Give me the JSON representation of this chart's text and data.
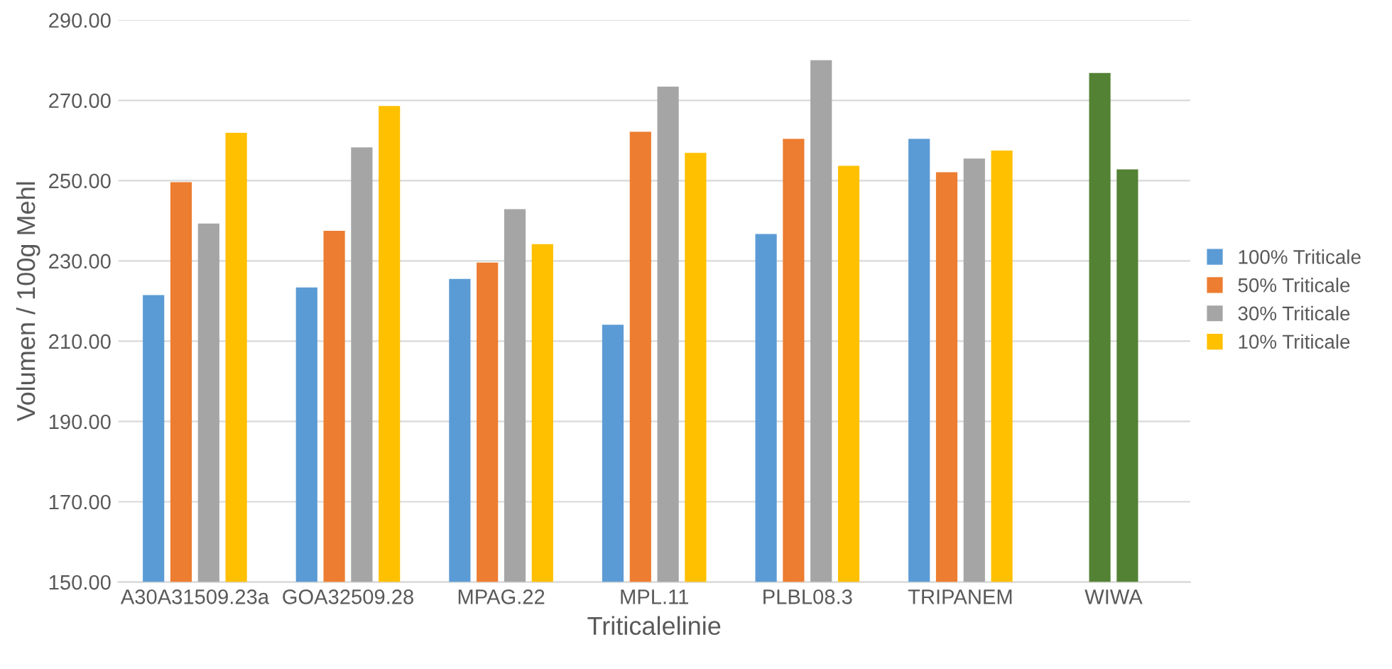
{
  "chart_data": {
    "type": "bar",
    "xlabel": "Triticalelinie",
    "ylabel": "Volumen / 100g Mehl",
    "categories": [
      "A30A31509.23a",
      "GOA32509.28",
      "MPAG.22",
      "MPL.11",
      "PLBL08.3",
      "TRIPANEM",
      "WIWA"
    ],
    "series": [
      {
        "name": "100% Triticale",
        "color": "#5b9bd5",
        "values": [
          221.5,
          223.4,
          225.5,
          214.1,
          236.7,
          260.4,
          null
        ]
      },
      {
        "name": "50% Triticale",
        "color": "#ed7d31",
        "colors": [
          "#ed7d31",
          "#ed7d31",
          "#ed7d31",
          "#ed7d31",
          "#ed7d31",
          "#ed7d31",
          "#548235"
        ],
        "values": [
          249.6,
          237.5,
          229.6,
          262.2,
          260.4,
          252.1,
          276.8
        ]
      },
      {
        "name": "30% Triticale",
        "color": "#a5a5a5",
        "colors": [
          "#a5a5a5",
          "#a5a5a5",
          "#a5a5a5",
          "#a5a5a5",
          "#a5a5a5",
          "#a5a5a5",
          "#548235"
        ],
        "values": [
          239.3,
          258.3,
          242.9,
          273.4,
          280.0,
          255.5,
          252.8
        ]
      },
      {
        "name": "10% Triticale",
        "color": "#ffc000",
        "values": [
          261.9,
          268.6,
          234.2,
          256.9,
          253.7,
          257.5,
          null
        ]
      }
    ],
    "ylim": [
      150,
      290
    ],
    "yticks": [
      {
        "value": 150,
        "label": "150.00"
      },
      {
        "value": 170,
        "label": "170.00"
      },
      {
        "value": 190,
        "label": "190.00"
      },
      {
        "value": 210,
        "label": "210.00"
      },
      {
        "value": 230,
        "label": "230.00"
      },
      {
        "value": 250,
        "label": "250.00"
      },
      {
        "value": 270,
        "label": "270.00"
      },
      {
        "value": 290,
        "label": "290.00"
      }
    ],
    "grid": "y",
    "legend": "right"
  }
}
